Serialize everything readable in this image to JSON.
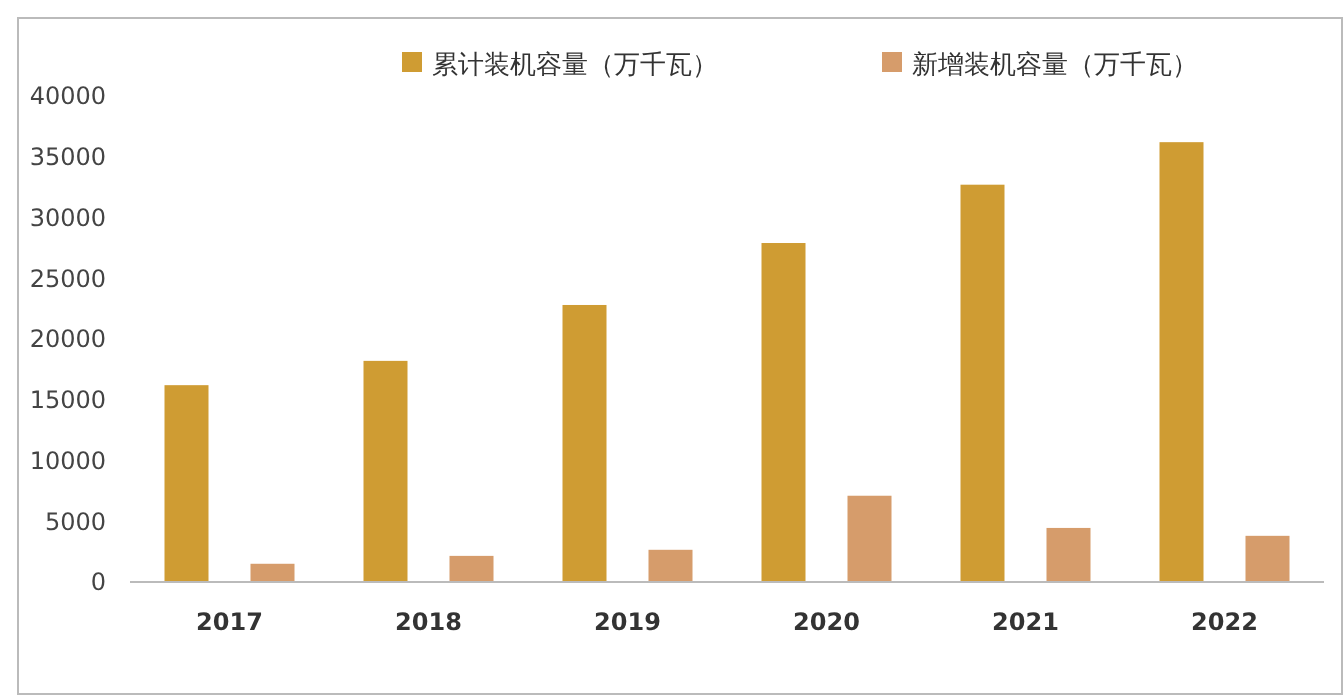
{
  "chart_data": {
    "type": "bar",
    "categories": [
      "2017",
      "2018",
      "2019",
      "2020",
      "2021",
      "2022"
    ],
    "series": [
      {
        "name": "累计装机容量（万千瓦）",
        "color": "#cf9c33",
        "values": [
          16200,
          18200,
          22800,
          27900,
          32700,
          36200
        ]
      },
      {
        "name": "新增装机容量（万千瓦）",
        "color": "#d69c6b",
        "values": [
          1500,
          2150,
          2650,
          7100,
          4450,
          3800
        ]
      }
    ],
    "ylim": [
      0,
      40000
    ],
    "yticks": [
      0,
      5000,
      10000,
      15000,
      20000,
      25000,
      30000,
      35000,
      40000
    ],
    "grid": false,
    "legend": "top"
  }
}
